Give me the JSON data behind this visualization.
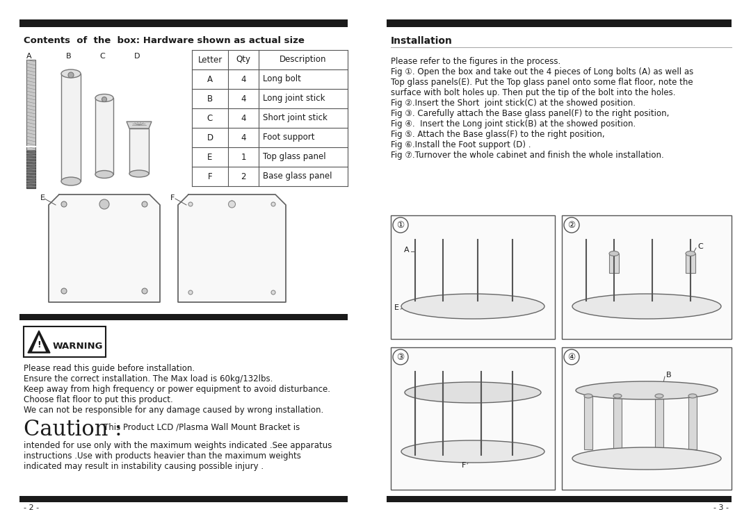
{
  "bg_color": "#ffffff",
  "text_color": "#1a1a1a",
  "page_width": 10.8,
  "page_height": 7.63,
  "left_header": "Contents  of  the  box: Hardware shown as actual size",
  "right_header": "Installation",
  "table_headers": [
    "Letter",
    "Qty",
    "Description"
  ],
  "table_rows": [
    [
      "A",
      "4",
      "Long bolt"
    ],
    [
      "B",
      "4",
      "Long joint stick"
    ],
    [
      "C",
      "4",
      "Short joint stick"
    ],
    [
      "D",
      "4",
      "Foot support"
    ],
    [
      "E",
      "1",
      "Top glass panel"
    ],
    [
      "F",
      "2",
      "Base glass panel"
    ]
  ],
  "warning_lines": [
    "Please read this guide before installation.",
    "Ensure the correct installation. The Max load is 60kg/132lbs.",
    "Keep away from high frequency or power equipment to avoid disturbance.",
    "Choose flat floor to put this product.",
    "We can not be responsible for any damage caused by wrong installation."
  ],
  "caution_big": "Caution :",
  "caution_small": "This Product LCD /Plasma Wall Mount Bracket is",
  "caution_body": [
    "intended for use only with the maximum weights indicated .See apparatus",
    "instructions .Use with products heavier than the maximum weights",
    "indicated may result in instability causing possible injury ."
  ],
  "install_intro": "Please refer to the figures in the process.",
  "install_steps": [
    "Fig ①. Open the box and take out the 4 pieces of Long bolts (A) as well as",
    "Top glass panels(E). Put the Top glass panel onto some flat floor, note the",
    "surface with bolt holes up. Then put the tip of the bolt into the holes.",
    "Fig ②.Insert the Short  joint stick(C) at the showed position.",
    "Fig ③. Carefully attach the Base glass panel(F) to the right position,",
    "Fig ④.  Insert the Long joint stick(B) at the showed position.",
    "Fig ⑤. Attach the Base glass(F) to the right position,",
    "Fig ⑥.Install the Foot support (D) .",
    "Fig ⑦.Turnover the whole cabinet and finish the whole installation."
  ],
  "page_left": "- 2 -",
  "page_right": "- 3 -"
}
